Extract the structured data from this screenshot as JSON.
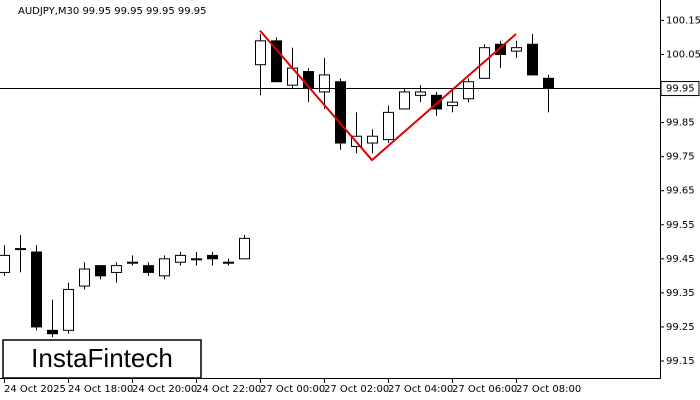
{
  "chart_data": {
    "type": "candlestick",
    "title": "AUDJPY,M30  99.95 99.95 99.95 99.95",
    "categories": [
      "24 Oct 2025",
      null,
      null,
      null,
      "24 Oct 18:00",
      null,
      null,
      null,
      "24 Oct 20:00",
      null,
      null,
      null,
      "24 Oct 22:00",
      null,
      null,
      null,
      "27 Oct 00:00",
      null,
      null,
      null,
      "27 Oct 02:00",
      null,
      null,
      null,
      "27 Oct 04:00",
      null,
      null,
      null,
      "27 Oct 06:00",
      null,
      null,
      null,
      "27 Oct 08:00",
      null,
      null
    ],
    "open": [
      99.41,
      99.48,
      99.47,
      99.24,
      99.24,
      99.37,
      99.43,
      99.41,
      99.44,
      99.43,
      99.4,
      99.44,
      99.45,
      99.46,
      99.44,
      99.45,
      100.02,
      100.09,
      99.96,
      100.0,
      99.94,
      99.97,
      99.78,
      99.79,
      99.8,
      99.89,
      99.93,
      99.93,
      99.9,
      99.92,
      99.98,
      100.08,
      100.06,
      100.08,
      99.98
    ],
    "high": [
      99.49,
      99.52,
      99.49,
      99.33,
      99.38,
      99.44,
      99.43,
      99.44,
      99.46,
      99.44,
      99.46,
      99.47,
      99.47,
      99.47,
      99.45,
      99.52,
      100.11,
      100.1,
      100.07,
      100.01,
      100.04,
      99.98,
      99.88,
      99.83,
      99.9,
      99.95,
      99.96,
      99.94,
      99.95,
      99.98,
      100.08,
      100.09,
      100.09,
      100.11,
      99.99
    ],
    "low": [
      99.4,
      99.41,
      99.24,
      99.22,
      99.23,
      99.36,
      99.39,
      99.38,
      99.43,
      99.4,
      99.39,
      99.43,
      99.43,
      99.43,
      99.43,
      99.45,
      99.93,
      99.97,
      99.95,
      99.91,
      99.89,
      99.77,
      99.76,
      99.76,
      99.79,
      99.89,
      99.91,
      99.87,
      99.88,
      99.91,
      99.98,
      100.01,
      100.04,
      99.99,
      99.88
    ],
    "close": [
      99.46,
      99.48,
      99.25,
      99.23,
      99.36,
      99.42,
      99.4,
      99.43,
      99.44,
      99.41,
      99.45,
      99.46,
      99.45,
      99.45,
      99.44,
      99.51,
      100.09,
      99.97,
      100.01,
      99.95,
      99.99,
      99.79,
      99.81,
      99.81,
      99.88,
      99.94,
      99.94,
      99.89,
      99.91,
      99.97,
      100.07,
      100.05,
      100.07,
      99.99,
      99.95
    ],
    "ylim": [
      99.1,
      100.21
    ],
    "yticks": [
      99.15,
      99.25,
      99.35,
      99.45,
      99.55,
      99.65,
      99.75,
      99.85,
      99.95,
      100.05,
      100.15
    ],
    "current_price": 99.95,
    "pattern": {
      "color": "#e00000",
      "indices": [
        16,
        23,
        32
      ],
      "values": [
        100.12,
        99.74,
        100.11
      ]
    },
    "watermark": "InstaFintech"
  }
}
